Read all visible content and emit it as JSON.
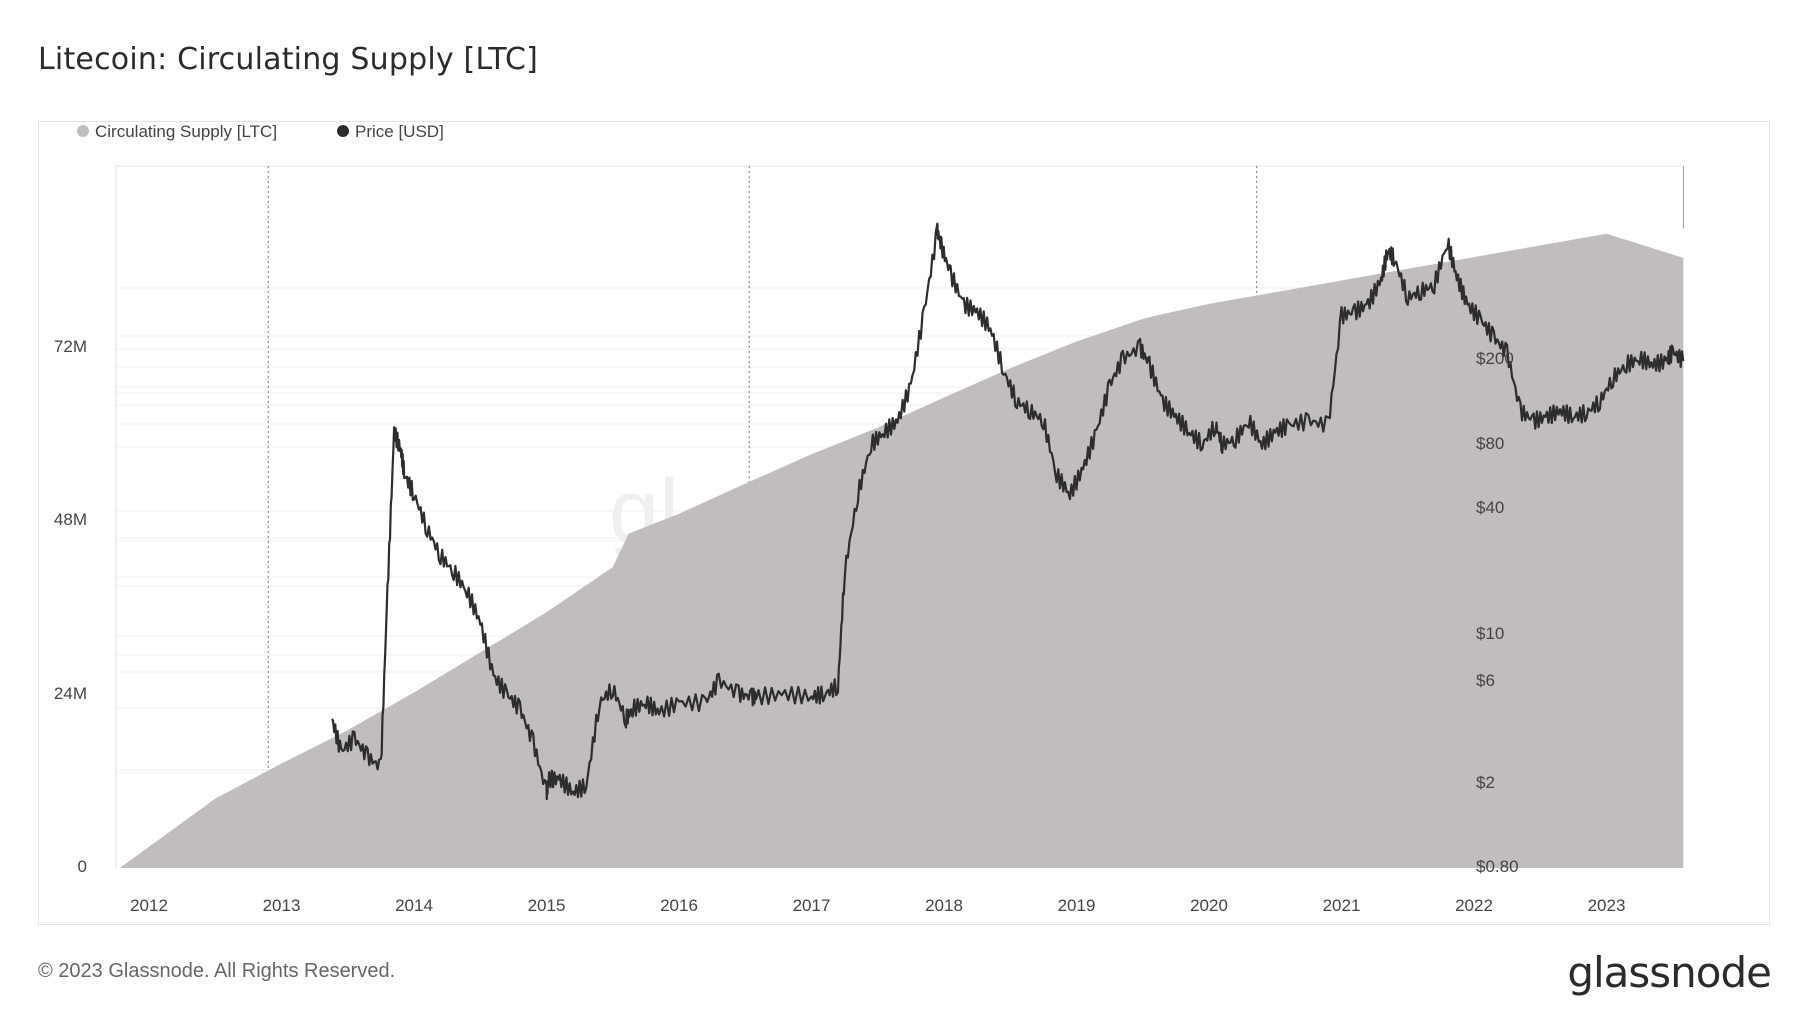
{
  "title": "Litecoin: Circulating Supply [LTC]",
  "footer": "© 2023 Glassnode. All Rights Reserved.",
  "logo": "glassnode",
  "chart_data": {
    "type": "area",
    "x_ticks": [
      "2012",
      "2013",
      "2014",
      "2015",
      "2016",
      "2017",
      "2018",
      "2019",
      "2020",
      "2021",
      "2022",
      "2023"
    ],
    "y_left_ticks": [
      "0",
      "24M",
      "48M",
      "72M"
    ],
    "y_right_ticks": [
      "$0.80",
      "$2",
      "$6",
      "$10",
      "$40",
      "$80",
      "$200"
    ],
    "y_left_range": [
      0,
      84000000
    ],
    "y_right_scale": "log",
    "legend": [
      "Circulating Supply [LTC]",
      "Price [USD]"
    ],
    "legend_position": "top-left",
    "colors": {
      "supply": "#c1bdbc",
      "price": "#2d2d2d"
    },
    "series": [
      {
        "name": "Circulating Supply [LTC]",
        "x": [
          2011.78,
          2012.5,
          2013.0,
          2013.5,
          2014.0,
          2014.5,
          2015.0,
          2015.5,
          2015.62,
          2016.0,
          2016.5,
          2017.0,
          2017.5,
          2018.0,
          2018.5,
          2019.0,
          2019.5,
          2019.6,
          2020.0,
          2020.5,
          2021.0,
          2021.5,
          2022.0,
          2022.5,
          2023.0,
          2023.58
        ],
        "values": [
          0,
          8300000,
          12500000,
          16500000,
          21000000,
          25800000,
          30600000,
          36000000,
          40000000,
          42400000,
          46000000,
          49500000,
          52700000,
          56300000,
          59800000,
          63000000,
          65700000,
          66100000,
          67500000,
          68900000,
          70300000,
          71700000,
          73100000,
          74500000,
          75900000,
          73000000
        ]
      },
      {
        "name": "Price [USD]",
        "x": [
          2013.38,
          2013.45,
          2013.55,
          2013.65,
          2013.75,
          2013.8,
          2013.85,
          2013.9,
          2013.93,
          2014.0,
          2014.1,
          2014.2,
          2014.3,
          2014.4,
          2014.5,
          2014.6,
          2014.7,
          2014.8,
          2014.9,
          2015.0,
          2015.02,
          2015.1,
          2015.2,
          2015.3,
          2015.4,
          2015.5,
          2015.6,
          2015.65,
          2015.75,
          2015.85,
          2016.0,
          2016.2,
          2016.3,
          2016.45,
          2016.55,
          2016.6,
          2016.8,
          2017.0,
          2017.1,
          2017.2,
          2017.25,
          2017.35,
          2017.45,
          2017.55,
          2017.65,
          2017.75,
          2017.85,
          2017.95,
          2017.98,
          2018.05,
          2018.15,
          2018.25,
          2018.35,
          2018.45,
          2018.55,
          2018.65,
          2018.75,
          2018.85,
          2018.95,
          2019.05,
          2019.15,
          2019.25,
          2019.35,
          2019.48,
          2019.55,
          2019.65,
          2019.75,
          2019.85,
          2019.95,
          2020.05,
          2020.1,
          2020.2,
          2020.3,
          2020.4,
          2020.5,
          2020.6,
          2020.75,
          2020.9,
          2021.0,
          2021.1,
          2021.2,
          2021.3,
          2021.35,
          2021.4,
          2021.5,
          2021.6,
          2021.7,
          2021.8,
          2021.87,
          2021.95,
          2022.05,
          2022.15,
          2022.25,
          2022.35,
          2022.45,
          2022.55,
          2022.65,
          2022.75,
          2022.85,
          2022.95,
          2023.05,
          2023.15,
          2023.25,
          2023.35,
          2023.45,
          2023.5,
          2023.58
        ],
        "values": [
          3.0,
          2.2,
          2.5,
          2.1,
          1.9,
          10.0,
          45.0,
          38.0,
          30.0,
          25.0,
          18.0,
          14.0,
          12.0,
          10.0,
          7.5,
          4.5,
          3.8,
          3.3,
          2.4,
          1.5,
          1.7,
          1.7,
          1.5,
          1.6,
          3.5,
          4.0,
          3.0,
          3.3,
          3.5,
          3.2,
          3.5,
          3.5,
          4.3,
          3.8,
          3.7,
          3.7,
          3.8,
          3.7,
          3.8,
          4.1,
          12.0,
          25.0,
          40.0,
          45.0,
          50.0,
          70.0,
          140.0,
          300.0,
          260.0,
          200.0,
          150.0,
          140.0,
          120.0,
          80.0,
          60.0,
          55.0,
          50.0,
          30.0,
          25.0,
          32.0,
          45.0,
          70.0,
          90.0,
          100.0,
          85.0,
          60.0,
          52.0,
          45.0,
          40.0,
          48.0,
          40.0,
          42.0,
          50.0,
          40.0,
          45.0,
          48.0,
          50.0,
          48.0,
          135.0,
          140.0,
          150.0,
          190.0,
          250.0,
          230.0,
          160.0,
          170.0,
          180.0,
          270.0,
          195.0,
          150.0,
          130.0,
          110.0,
          95.0,
          55.0,
          50.0,
          52.0,
          55.0,
          52.0,
          54.0,
          60.0,
          75.0,
          85.0,
          90.0,
          85.0,
          88.0,
          96.0,
          88.0
        ]
      }
    ]
  }
}
